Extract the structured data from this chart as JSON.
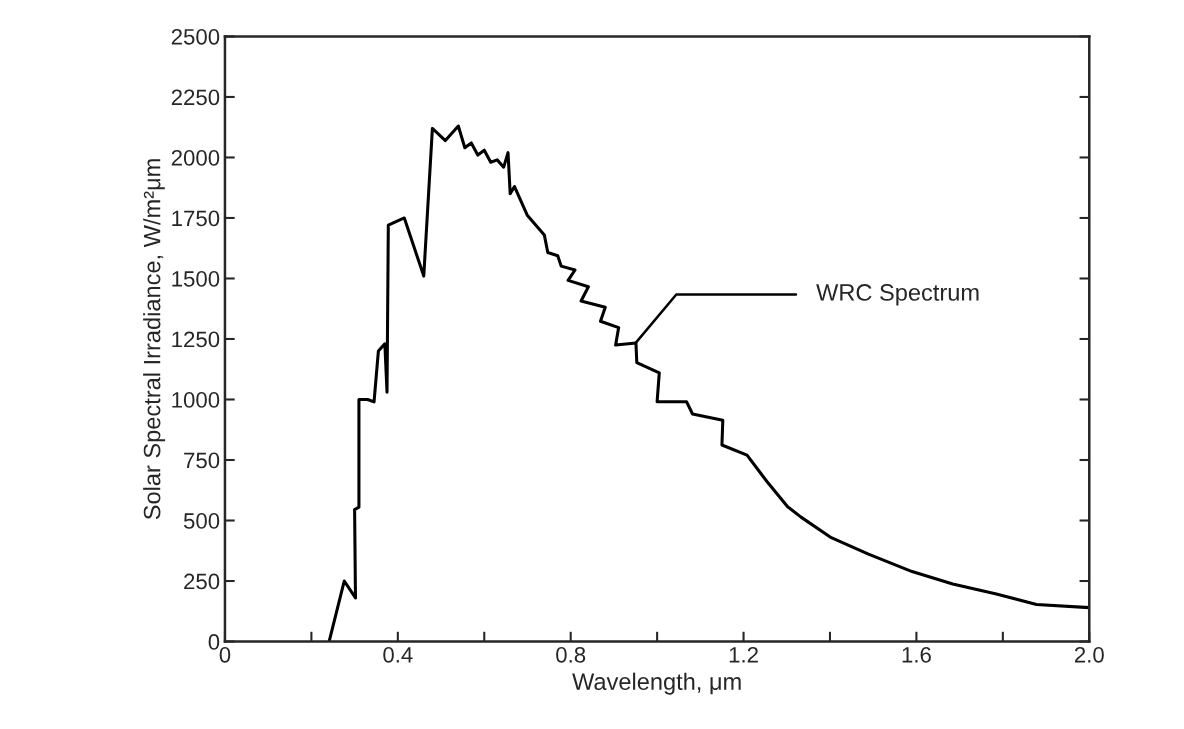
{
  "chart_data": {
    "type": "line",
    "xlabel": "Wavelength, μm",
    "ylabel": "Solar Spectral Irradiance, W/m²μm",
    "xlim": [
      0,
      2.0
    ],
    "ylim": [
      0,
      2500
    ],
    "xticks": [
      0,
      {
        "value": 0.2,
        "label": null
      },
      0.4,
      {
        "value": 0.6,
        "label": null
      },
      0.8,
      {
        "value": 1.0,
        "label": null
      },
      1.2,
      {
        "value": 1.4,
        "label": null
      },
      1.6,
      {
        "value": 1.8,
        "label": null
      },
      {
        "value": 2.0,
        "label": "2.0"
      }
    ],
    "yticks": [
      0,
      250,
      500,
      750,
      1000,
      1250,
      1500,
      1750,
      2000,
      2250,
      2500
    ],
    "grid": false,
    "legend": false,
    "marker": "none",
    "line_style": "solid",
    "annotations": [
      {
        "text": "WRC Spectrum",
        "x": 0.95,
        "y": 1233
      }
    ],
    "series": [
      {
        "color": "#000000",
        "x": [
          0.241,
          0.276,
          0.302,
          0.3,
          0.31,
          0.31,
          0.33,
          0.345,
          0.355,
          0.37,
          0.375,
          0.378,
          0.415,
          0.46,
          0.48,
          0.51,
          0.54,
          0.555,
          0.57,
          0.585,
          0.6,
          0.615,
          0.63,
          0.645,
          0.655,
          0.66,
          0.67,
          0.7,
          0.739,
          0.747,
          0.77,
          0.778,
          0.81,
          0.794,
          0.841,
          0.824,
          0.88,
          0.869,
          0.911,
          0.904,
          0.951,
          0.953,
          1.005,
          1.0,
          1.068,
          1.082,
          1.152,
          1.15,
          1.208,
          1.255,
          1.302,
          1.333,
          1.403,
          1.489,
          1.59,
          1.684,
          1.785,
          1.878,
          2.0
        ],
        "values": [
          0,
          250,
          180,
          545,
          555,
          1000,
          1000,
          990,
          1200,
          1230,
          1030,
          1720,
          1750,
          1510,
          2120,
          2070,
          2130,
          2040,
          2060,
          2010,
          2030,
          1980,
          1990,
          1960,
          2020,
          1850,
          1880,
          1760,
          1680,
          1607,
          1594,
          1551,
          1535,
          1492,
          1466,
          1407,
          1381,
          1323,
          1297,
          1225,
          1233,
          1152,
          1110,
          991,
          991,
          940,
          914,
          812,
          770,
          659,
          557,
          514,
          429,
          361,
          289,
          238,
          196,
          153,
          140
        ]
      }
    ]
  }
}
